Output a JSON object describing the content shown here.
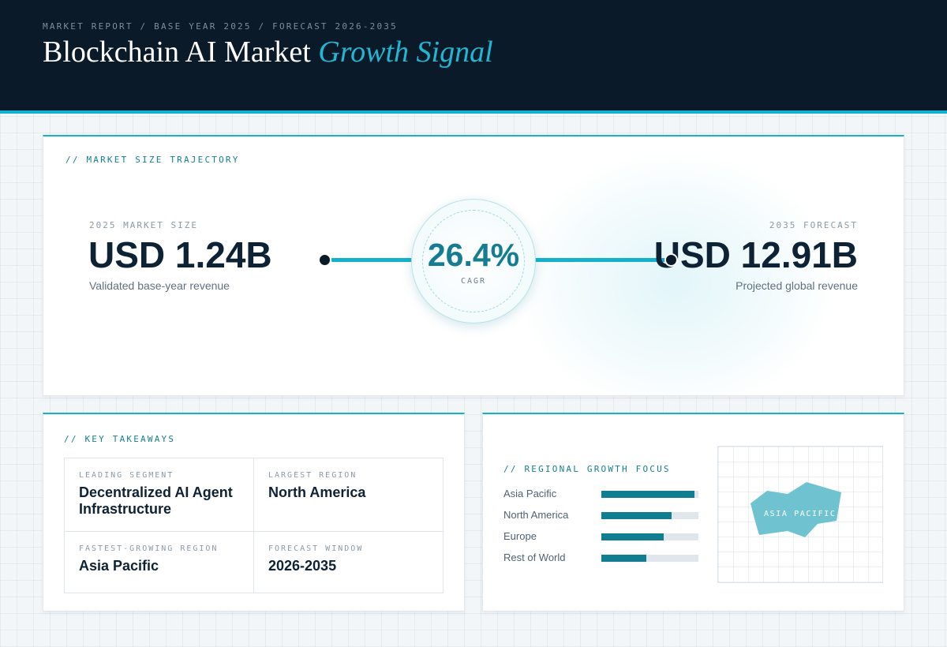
{
  "header": {
    "breadcrumb": "MARKET REPORT / BASE YEAR 2025 / FORECAST 2026-2035",
    "title_main": "Blockchain AI Market ",
    "title_accent": "Growth Signal"
  },
  "trajectory": {
    "section_label": "// MARKET SIZE TRAJECTORY",
    "base": {
      "label": "2025 MARKET SIZE",
      "value": "USD 1.24B",
      "caption": "Validated base-year revenue"
    },
    "cagr": {
      "value": "26.4%",
      "label": "CAGR"
    },
    "forecast": {
      "label": "2035 FORECAST",
      "value": "USD 12.91B",
      "caption": "Projected global revenue"
    }
  },
  "takeaways": {
    "section_label": "// KEY TAKEAWAYS",
    "cells": [
      {
        "label": "LEADING SEGMENT",
        "value": "Decentralized AI Agent Infrastructure"
      },
      {
        "label": "LARGEST REGION",
        "value": "North America"
      },
      {
        "label": "FASTEST-GROWING REGION",
        "value": "Asia Pacific"
      },
      {
        "label": "FORECAST WINDOW",
        "value": "2026-2035"
      }
    ]
  },
  "regional": {
    "section_label": "// REGIONAL GROWTH FOCUS",
    "regions": [
      {
        "name": "Asia Pacific",
        "level": 0.96
      },
      {
        "name": "North America",
        "level": 0.72
      },
      {
        "name": "Europe",
        "level": 0.64
      },
      {
        "name": "Rest of World",
        "level": 0.46
      }
    ],
    "map_label": "ASIA PACIFIC",
    "map_color": "#6fc3d0"
  },
  "colors": {
    "header_bg": "#0b1a28",
    "accent": "#14b1cf",
    "bar_fill": "#117d91",
    "bar_track": "#dfe6ec"
  }
}
